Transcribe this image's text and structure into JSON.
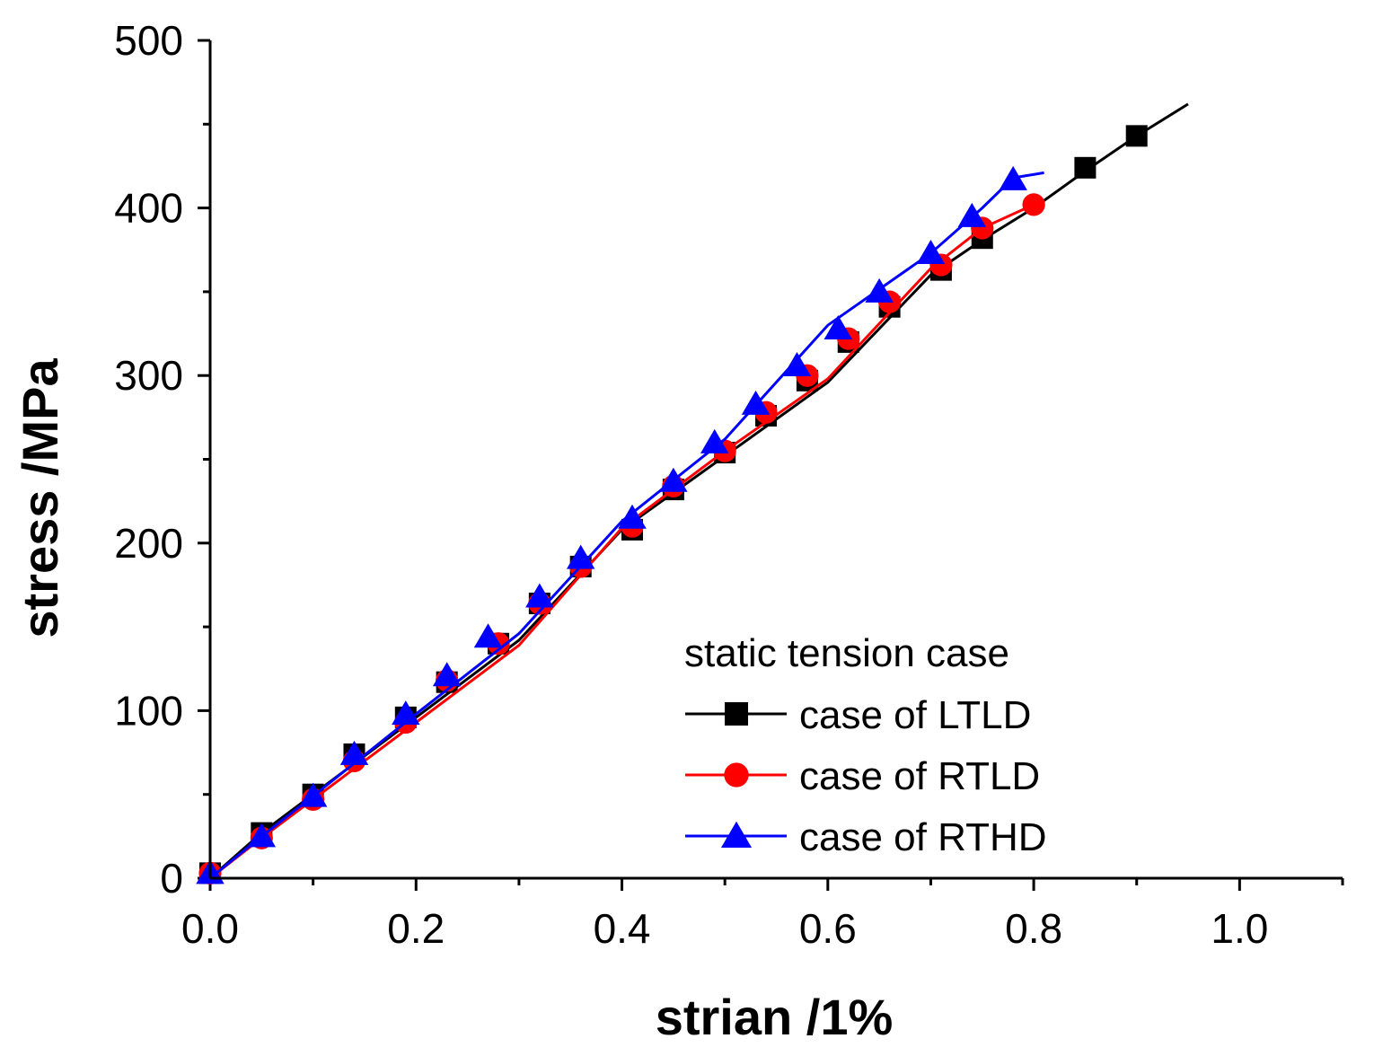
{
  "chart_data": {
    "type": "line",
    "xlabel": "strian /1%",
    "ylabel": "stress /MPa",
    "xlim": [
      0,
      1.1
    ],
    "ylim": [
      0,
      500
    ],
    "x_ticks": [
      0.0,
      0.2,
      0.4,
      0.6,
      0.8,
      1.0
    ],
    "x_tick_labels": [
      "0.0",
      "0.2",
      "0.4",
      "0.6",
      "0.8",
      "1.0"
    ],
    "y_ticks": [
      0,
      100,
      200,
      300,
      400,
      500
    ],
    "y_tick_labels": [
      "0",
      "100",
      "200",
      "300",
      "400",
      "500"
    ],
    "legend": {
      "title": "static tension case",
      "position": "lower-right"
    },
    "series": [
      {
        "name": "case of LTLD",
        "color": "#000000",
        "marker": "square",
        "line_x": [
          0.0,
          0.05,
          0.1,
          0.2,
          0.3,
          0.4,
          0.5,
          0.6,
          0.7,
          0.75,
          0.8,
          0.85,
          0.9,
          0.95
        ],
        "line_y": [
          0,
          27,
          50,
          96,
          142,
          208,
          252,
          296,
          360,
          381,
          400,
          422,
          443,
          462
        ],
        "marker_x": [
          0.0,
          0.05,
          0.1,
          0.14,
          0.19,
          0.23,
          0.28,
          0.32,
          0.36,
          0.41,
          0.45,
          0.5,
          0.54,
          0.58,
          0.62,
          0.66,
          0.71,
          0.75,
          0.85,
          0.9
        ],
        "marker_y": [
          3,
          27,
          50,
          74,
          96,
          117,
          140,
          164,
          186,
          208,
          232,
          254,
          276,
          297,
          320,
          341,
          363,
          382,
          424,
          443
        ]
      },
      {
        "name": "case of RTLD",
        "color": "#ff0000",
        "marker": "circle",
        "line_x": [
          0.0,
          0.05,
          0.1,
          0.2,
          0.3,
          0.4,
          0.5,
          0.6,
          0.7,
          0.75,
          0.8
        ],
        "line_y": [
          0,
          24,
          47,
          93,
          139,
          209,
          255,
          298,
          364,
          388,
          402
        ],
        "marker_x": [
          0.0,
          0.05,
          0.1,
          0.14,
          0.19,
          0.23,
          0.28,
          0.32,
          0.36,
          0.41,
          0.45,
          0.5,
          0.54,
          0.58,
          0.62,
          0.66,
          0.71,
          0.75,
          0.8
        ],
        "marker_y": [
          3,
          24,
          47,
          70,
          93,
          118,
          140,
          164,
          186,
          210,
          234,
          255,
          278,
          300,
          322,
          344,
          366,
          388,
          402
        ]
      },
      {
        "name": "case of RTHD",
        "color": "#0000ff",
        "marker": "triangle",
        "line_x": [
          0.0,
          0.05,
          0.1,
          0.2,
          0.3,
          0.4,
          0.5,
          0.6,
          0.7,
          0.75,
          0.78,
          0.81
        ],
        "line_y": [
          0,
          25,
          49,
          98,
          146,
          213,
          262,
          330,
          373,
          400,
          418,
          421
        ],
        "marker_x": [
          0.0,
          0.05,
          0.1,
          0.14,
          0.19,
          0.23,
          0.27,
          0.32,
          0.36,
          0.41,
          0.45,
          0.49,
          0.53,
          0.57,
          0.61,
          0.65,
          0.7,
          0.74,
          0.78
        ],
        "marker_y": [
          3,
          25,
          49,
          74,
          98,
          121,
          144,
          168,
          191,
          215,
          237,
          260,
          283,
          306,
          328,
          350,
          373,
          395,
          417
        ]
      }
    ]
  }
}
